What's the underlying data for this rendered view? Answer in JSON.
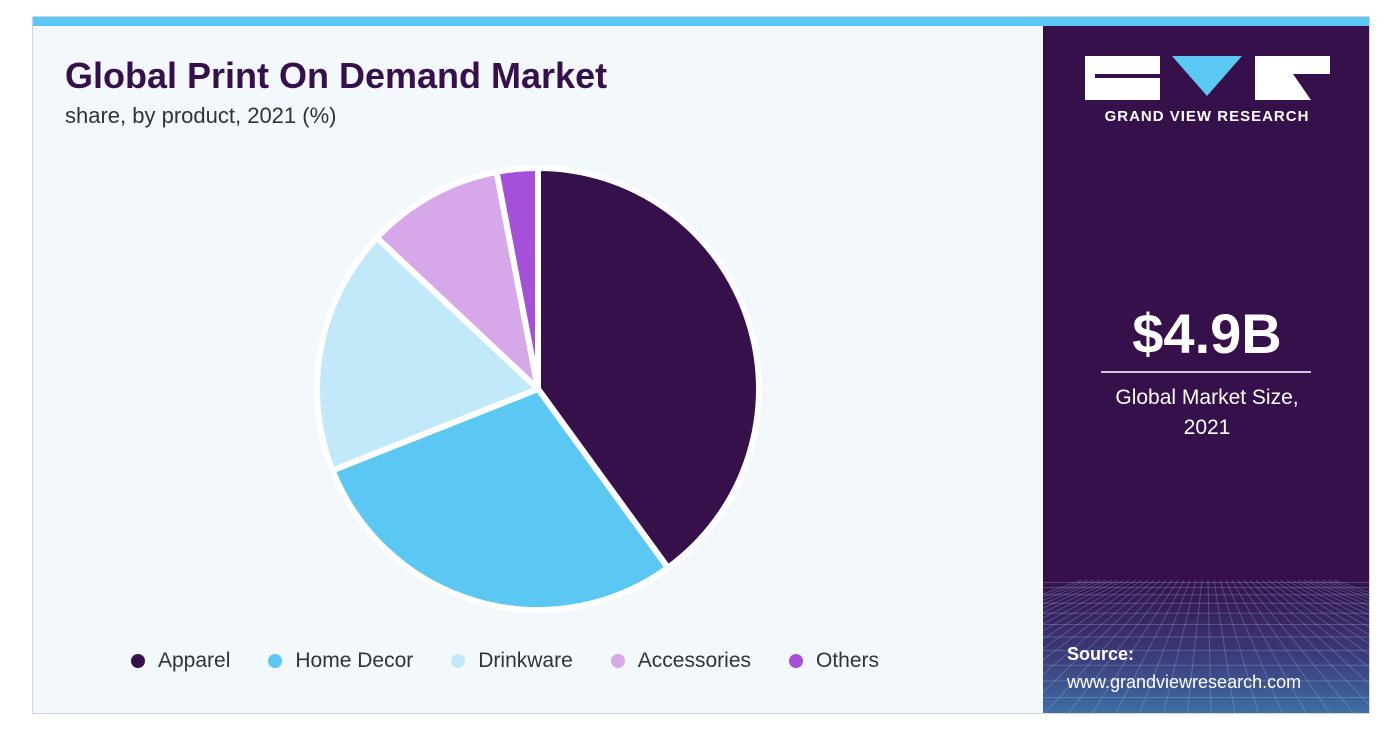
{
  "chart_data": {
    "type": "pie",
    "title": "Global Print On Demand Market",
    "subtitle": "share, by product, 2021 (%)",
    "categories": [
      "Apparel",
      "Home Decor",
      "Drinkware",
      "Accessories",
      "Others"
    ],
    "values": [
      40,
      29,
      18,
      10,
      3
    ],
    "colors": [
      "#35104a",
      "#5bc8f4",
      "#c1e9fa",
      "#d6a8ea",
      "#a450d8"
    ],
    "legend_position": "bottom"
  },
  "side_panel": {
    "brand": "GRAND VIEW RESEARCH",
    "market_value": "$4.9B",
    "market_label_line1": "Global Market Size,",
    "market_label_line2": "2021",
    "source_label": "Source:",
    "source_url": "www.grandviewresearch.com"
  }
}
